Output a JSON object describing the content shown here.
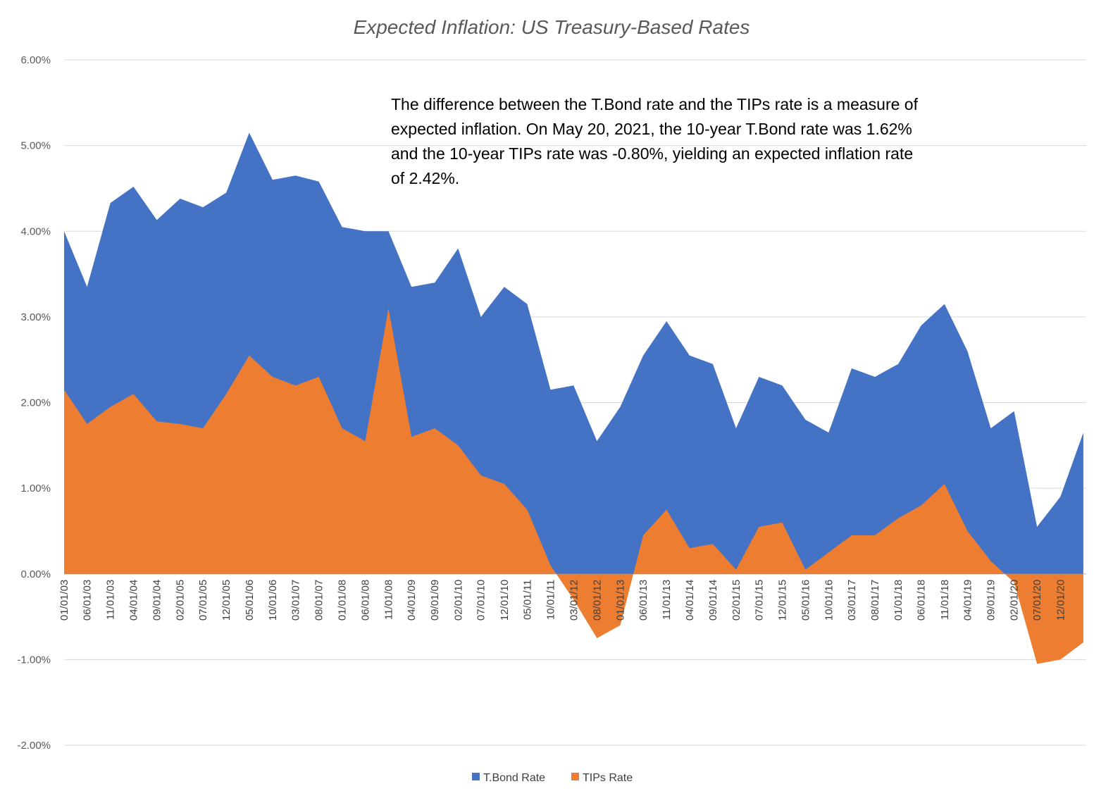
{
  "chart_data": {
    "type": "area",
    "title": "Expected Inflation: US Treasury-Based Rates",
    "xlabel": "",
    "ylabel": "",
    "ylim": [
      -0.02,
      0.06
    ],
    "y_ticks": [
      "-2.00%",
      "-1.00%",
      "0.00%",
      "1.00%",
      "2.00%",
      "3.00%",
      "4.00%",
      "5.00%",
      "6.00%"
    ],
    "x_tick_labels": [
      "01/01/03",
      "06/01/03",
      "11/01/03",
      "04/01/04",
      "09/01/04",
      "02/01/05",
      "07/01/05",
      "12/01/05",
      "05/01/06",
      "10/01/06",
      "03/01/07",
      "08/01/07",
      "01/01/08",
      "06/01/08",
      "11/01/08",
      "04/01/09",
      "09/01/09",
      "02/01/10",
      "07/01/10",
      "12/01/10",
      "05/01/11",
      "10/01/11",
      "03/01/12",
      "08/01/12",
      "01/01/13",
      "06/01/13",
      "11/01/13",
      "04/01/14",
      "09/01/14",
      "02/01/15",
      "07/01/15",
      "12/01/15",
      "05/01/16",
      "10/01/16",
      "03/01/17",
      "08/01/17",
      "01/01/18",
      "06/01/18",
      "11/01/18",
      "04/01/19",
      "09/01/19",
      "02/01/20",
      "07/01/20",
      "12/01/20"
    ],
    "x_start": "01/01/03",
    "x_end": "05/20/21",
    "grid": true,
    "legend_position": "bottom",
    "annotation": {
      "lines": [
        "The difference between the T.Bond rate and the TIPs rate is a measure of",
        "expected inflation. On May 20, 2021, the 10-year T.Bond rate was 1.62%",
        "and the 10-year TIPs rate was -0.80%, yielding an expected inflation rate",
        "of 2.42%."
      ]
    },
    "series": [
      {
        "name": "T.Bond Rate",
        "color": "#4472C4",
        "x": [
          "01/01/03",
          "06/01/03",
          "11/01/03",
          "04/01/04",
          "09/01/04",
          "02/01/05",
          "07/01/05",
          "12/01/05",
          "05/01/06",
          "10/01/06",
          "03/01/07",
          "08/01/07",
          "01/01/08",
          "06/01/08",
          "11/01/08",
          "04/01/09",
          "09/01/09",
          "02/01/10",
          "07/01/10",
          "12/01/10",
          "05/01/11",
          "10/01/11",
          "03/01/12",
          "08/01/12",
          "01/01/13",
          "06/01/13",
          "11/01/13",
          "04/01/14",
          "09/01/14",
          "02/01/15",
          "07/01/15",
          "12/01/15",
          "05/01/16",
          "10/01/16",
          "03/01/17",
          "08/01/17",
          "01/01/18",
          "06/01/18",
          "11/01/18",
          "04/01/19",
          "09/01/19",
          "02/01/20",
          "07/01/20",
          "12/01/20",
          "05/01/21"
        ],
        "values": [
          4.0,
          3.35,
          4.33,
          4.52,
          4.13,
          4.38,
          4.28,
          4.45,
          5.15,
          4.6,
          4.65,
          4.58,
          4.05,
          4.0,
          4.0,
          3.35,
          3.4,
          3.8,
          3.0,
          3.35,
          3.15,
          2.15,
          2.2,
          1.55,
          1.95,
          2.55,
          2.95,
          2.55,
          2.45,
          1.7,
          2.3,
          2.2,
          1.8,
          1.65,
          2.4,
          2.3,
          2.45,
          2.9,
          3.15,
          2.6,
          1.7,
          1.9,
          0.55,
          0.9,
          1.65
        ]
      },
      {
        "name": "TIPs Rate",
        "color": "#ED7D31",
        "x": [
          "01/01/03",
          "06/01/03",
          "11/01/03",
          "04/01/04",
          "09/01/04",
          "02/01/05",
          "07/01/05",
          "12/01/05",
          "05/01/06",
          "10/01/06",
          "03/01/07",
          "08/01/07",
          "01/01/08",
          "06/01/08",
          "11/01/08",
          "04/01/09",
          "09/01/09",
          "02/01/10",
          "07/01/10",
          "12/01/10",
          "05/01/11",
          "10/01/11",
          "03/01/12",
          "08/01/12",
          "01/01/13",
          "06/01/13",
          "11/01/13",
          "04/01/14",
          "09/01/14",
          "02/01/15",
          "07/01/15",
          "12/01/15",
          "05/01/16",
          "10/01/16",
          "03/01/17",
          "08/01/17",
          "01/01/18",
          "06/01/18",
          "11/01/18",
          "04/01/19",
          "09/01/19",
          "02/01/20",
          "07/01/20",
          "12/01/20",
          "05/01/21"
        ],
        "values": [
          2.15,
          1.75,
          1.95,
          2.1,
          1.78,
          1.75,
          1.7,
          2.1,
          2.55,
          2.3,
          2.2,
          2.3,
          1.7,
          1.55,
          3.1,
          1.6,
          1.7,
          1.5,
          1.15,
          1.05,
          0.75,
          0.1,
          -0.3,
          -0.75,
          -0.6,
          0.45,
          0.75,
          0.3,
          0.35,
          0.05,
          0.55,
          0.6,
          0.05,
          0.25,
          0.45,
          0.45,
          0.65,
          0.8,
          1.05,
          0.5,
          0.15,
          -0.1,
          -1.05,
          -1.0,
          -0.8
        ]
      }
    ]
  },
  "legend": {
    "tbond_label": "T.Bond Rate",
    "tips_label": "TIPs Rate"
  }
}
